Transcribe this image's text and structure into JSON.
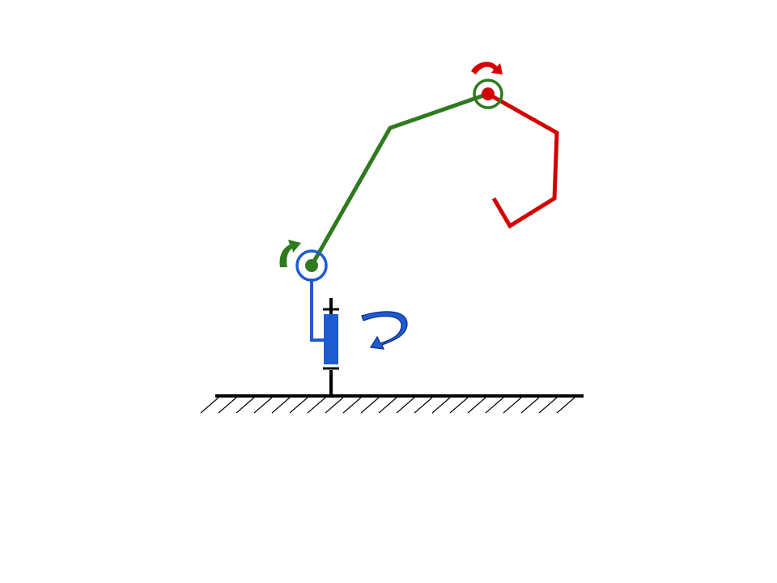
{
  "diagram": {
    "subject": "robot-arm-kinematic-schematic",
    "colors": {
      "background": "#ffffff",
      "ground": "#000000",
      "base_link": "#1f5bd0",
      "upper_arm": "#2f7a1f",
      "forearm": "#d40000",
      "forearm_bright": "#ee1111",
      "ground_hatch": "#000000"
    },
    "icons": {
      "base_rotation": "curved-arrow-icon",
      "shoulder_rotation": "curved-arrow-icon",
      "elbow_rotation": "curved-arrow-icon",
      "shoulder_joint": "revolute-joint-icon",
      "elbow_joint": "revolute-joint-icon",
      "ground": "ground-hatch-icon"
    }
  }
}
